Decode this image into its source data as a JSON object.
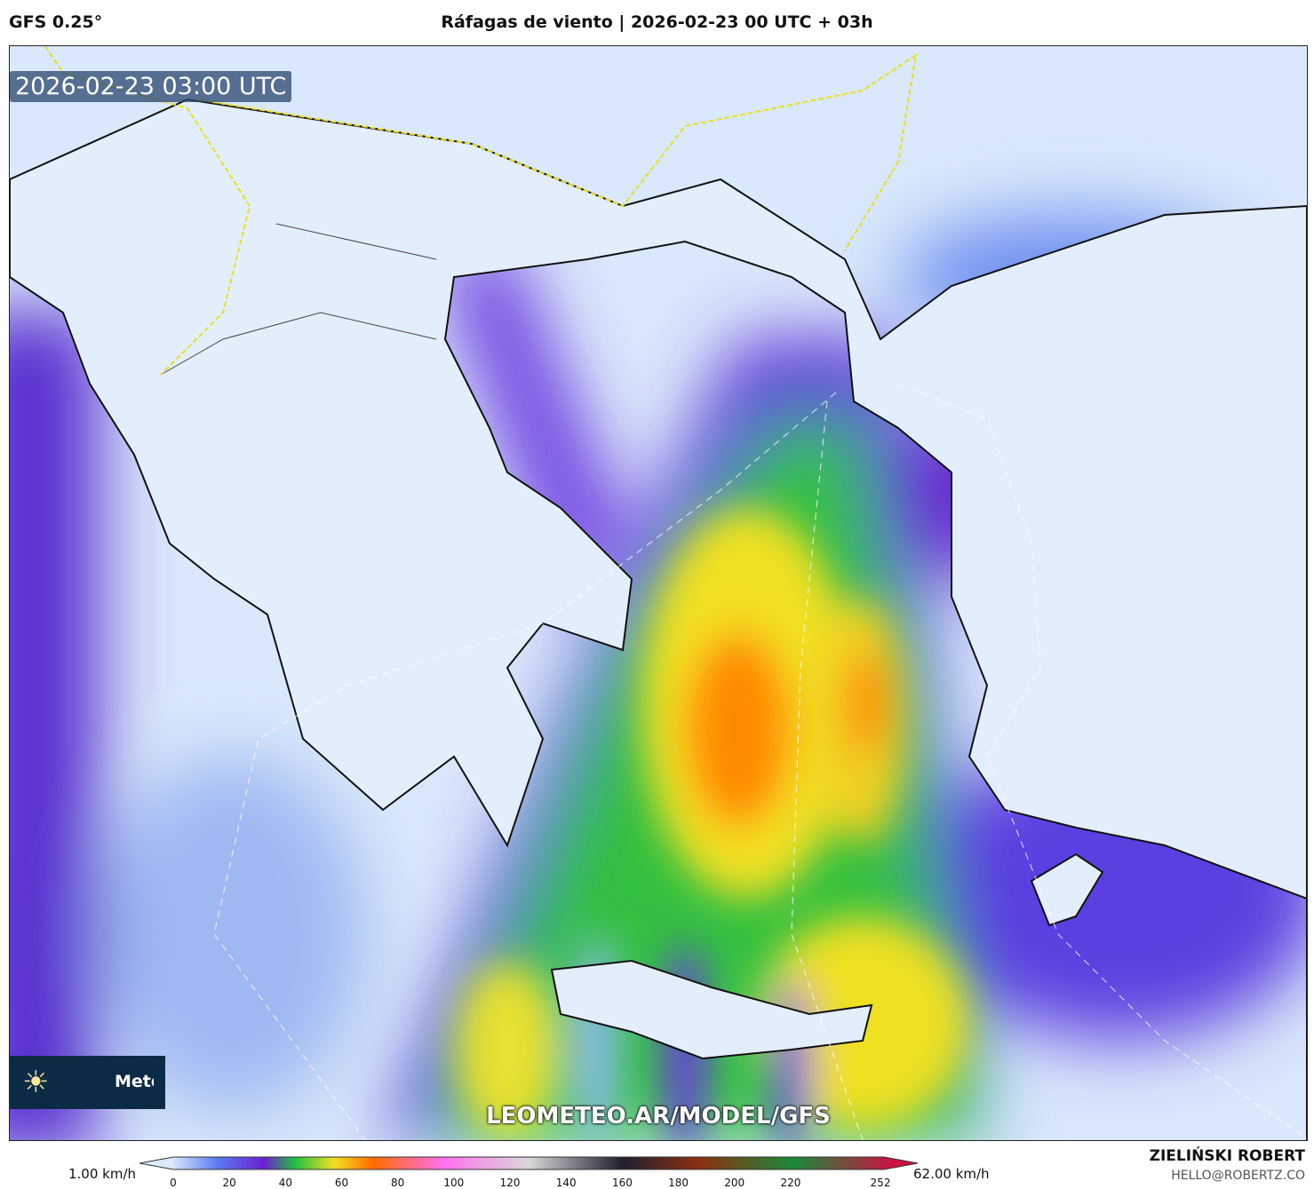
{
  "header": {
    "model": "GFS 0.25°",
    "title": "Ráfagas de viento | 2026-02-23 00 UTC + 03h"
  },
  "map": {
    "timestamp": "2026-02-23 03:00 UTC",
    "watermark": "LEOMETEO.AR/MODEL/GFS",
    "logo_text": "Meteo",
    "logo_icon": "sun-icon",
    "region": "Greece / Aegean Sea"
  },
  "colorbar": {
    "min_label": "1.00 km/h",
    "max_label": "62.00 km/h",
    "ticks": [
      "0",
      "20",
      "40",
      "60",
      "80",
      "100",
      "120",
      "140",
      "160",
      "180",
      "200",
      "220",
      "252"
    ],
    "colors": [
      "#dceafc",
      "#5a7cf0",
      "#6a1fd0",
      "#22c040",
      "#f0e020",
      "#ff6a00",
      "#ff70f0",
      "#d8d8d8",
      "#202030",
      "#8b3010",
      "#1a8a3a",
      "#d01040"
    ]
  },
  "credits": {
    "author": "ZIELIŃSKI ROBERT",
    "email": "HELLO@ROBERTZ.CO"
  }
}
